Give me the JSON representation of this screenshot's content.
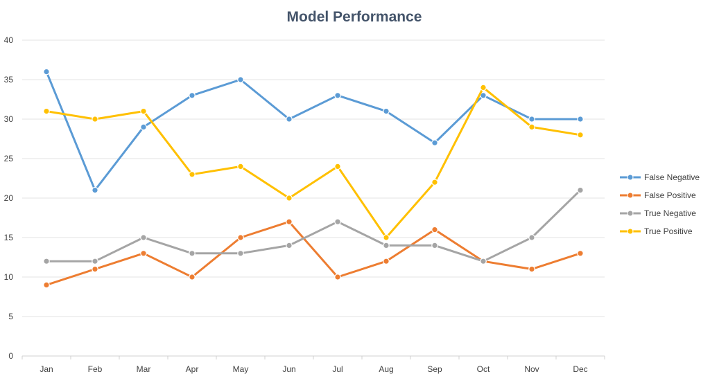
{
  "chart_data": {
    "type": "line",
    "title": "Model Performance",
    "xlabel": "",
    "ylabel": "",
    "categories": [
      "Jan",
      "Feb",
      "Mar",
      "Apr",
      "May",
      "Jun",
      "Jul",
      "Aug",
      "Sep",
      "Oct",
      "Nov",
      "Dec"
    ],
    "ylim": [
      0,
      40
    ],
    "yticks": [
      0,
      5,
      10,
      15,
      20,
      25,
      30,
      35,
      40
    ],
    "grid": true,
    "legend_position": "right",
    "series": [
      {
        "name": "False Negative",
        "color": "#5b9bd5",
        "values": [
          36,
          21,
          29,
          33,
          35,
          30,
          33,
          31,
          27,
          33,
          30,
          30
        ]
      },
      {
        "name": "False Positive",
        "color": "#ed7d31",
        "values": [
          9,
          11,
          13,
          10,
          15,
          17,
          10,
          12,
          16,
          12,
          11,
          13
        ]
      },
      {
        "name": "True Negative",
        "color": "#a5a5a5",
        "values": [
          12,
          12,
          15,
          13,
          13,
          14,
          17,
          14,
          14,
          12,
          15,
          21
        ]
      },
      {
        "name": "True Positive",
        "color": "#ffc000",
        "values": [
          31,
          30,
          31,
          23,
          24,
          20,
          24,
          15,
          22,
          34,
          29,
          28
        ]
      }
    ]
  }
}
